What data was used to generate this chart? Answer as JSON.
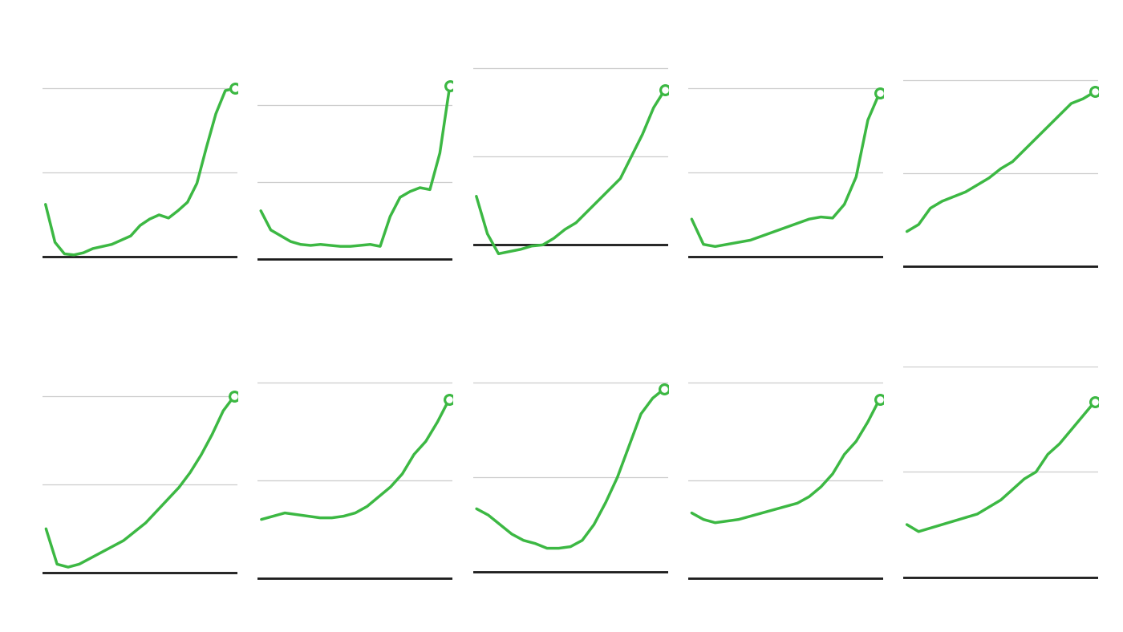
{
  "background_color": "#ffffff",
  "line_color": "#3cb843",
  "grid_color": "#cccccc",
  "n_rows": 2,
  "n_cols": 5,
  "series": [
    {
      "row": 0,
      "col": 0,
      "y": [
        2.5,
        0.8,
        0.2,
        0.1,
        0.3,
        0.5,
        0.6,
        0.7,
        1.2,
        1.8,
        2.0,
        1.8,
        2.2,
        2.5,
        3.5,
        5.0,
        6.5,
        7.5,
        7.8
      ],
      "ylim": [
        -1.0,
        9.5
      ],
      "yticks": [
        0,
        4,
        8
      ]
    },
    {
      "row": 0,
      "col": 1,
      "y": [
        2.5,
        1.5,
        1.2,
        0.9,
        0.8,
        0.7,
        0.75,
        0.8,
        0.7,
        0.65,
        0.6,
        0.65,
        2.0,
        3.0,
        3.5,
        4.0,
        4.5,
        7.0,
        9.0
      ],
      "ylim": [
        -1.0,
        10.5
      ],
      "yticks": [
        0,
        4,
        8
      ]
    },
    {
      "row": 0,
      "col": 2,
      "y": [
        2.2,
        0.5,
        -0.5,
        -0.3,
        -0.2,
        -0.1,
        -0.05,
        0.0,
        0.5,
        1.0,
        1.5,
        2.0,
        3.0,
        4.0,
        5.5,
        6.5,
        7.0
      ],
      "ylim": [
        -1.5,
        8.5
      ],
      "yticks": [
        0,
        4,
        8
      ]
    },
    {
      "row": 0,
      "col": 3,
      "y": [
        1.8,
        0.6,
        0.5,
        0.6,
        0.7,
        0.8,
        1.0,
        1.2,
        1.5,
        1.7,
        1.8,
        1.8,
        2.5,
        3.5,
        5.0,
        7.5,
        7.8
      ],
      "ylim": [
        -1.0,
        9.5
      ],
      "yticks": [
        0,
        4,
        8
      ]
    },
    {
      "row": 0,
      "col": 4,
      "y": [
        1.5,
        1.8,
        2.5,
        2.8,
        3.0,
        3.2,
        3.5,
        3.8,
        4.2,
        4.5,
        5.0,
        5.5,
        6.0,
        6.5,
        7.0,
        7.2,
        7.5
      ],
      "ylim": [
        -0.5,
        9.0
      ],
      "yticks": [
        0,
        4,
        8
      ]
    },
    {
      "row": 1,
      "col": 0,
      "y": [
        1.5,
        0.3,
        0.2,
        0.3,
        0.5,
        0.7,
        0.9,
        1.1,
        1.4,
        1.7,
        2.0,
        2.4,
        2.8,
        3.2,
        3.8,
        4.5,
        5.2,
        6.0
      ],
      "ylim": [
        -0.5,
        7.0
      ],
      "yticks": [
        0,
        3,
        6
      ]
    },
    {
      "row": 1,
      "col": 1,
      "y": [
        1.8,
        1.9,
        2.0,
        1.95,
        1.9,
        1.85,
        1.8,
        1.85,
        1.9,
        2.0,
        2.2,
        2.5,
        2.8,
        3.2,
        3.8,
        4.2,
        5.0,
        5.5
      ],
      "ylim": [
        -0.3,
        6.5
      ],
      "yticks": [
        0,
        3,
        6
      ]
    },
    {
      "row": 1,
      "col": 2,
      "y": [
        2.0,
        1.8,
        1.5,
        1.2,
        1.0,
        0.9,
        0.8,
        0.75,
        0.7,
        0.7,
        0.75,
        0.8,
        1.5,
        2.5,
        3.5,
        4.5,
        5.5,
        5.8
      ],
      "ylim": [
        -0.5,
        6.5
      ],
      "yticks": [
        0,
        3,
        6
      ]
    },
    {
      "row": 1,
      "col": 3,
      "y": [
        2.0,
        1.7,
        1.6,
        1.7,
        1.8,
        1.9,
        2.0,
        2.1,
        2.2,
        2.3,
        2.4,
        2.5,
        2.8,
        3.2,
        3.8,
        4.2,
        4.8,
        5.5
      ],
      "ylim": [
        -0.3,
        6.5
      ],
      "yticks": [
        0,
        3,
        6
      ]
    },
    {
      "row": 1,
      "col": 4,
      "y": [
        1.5,
        1.3,
        1.4,
        1.5,
        1.6,
        1.7,
        1.8,
        2.0,
        2.2,
        2.5,
        2.8,
        3.0,
        3.5,
        3.8,
        4.2,
        4.6,
        5.0
      ],
      "ylim": [
        -0.3,
        6.0
      ],
      "yticks": [
        0,
        3,
        6
      ]
    }
  ]
}
